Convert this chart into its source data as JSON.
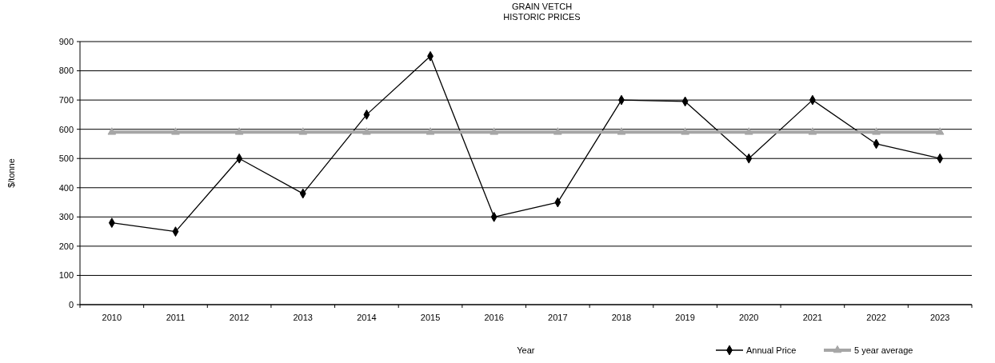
{
  "chart_data": {
    "type": "line",
    "title": "GRAIN VETCH",
    "subtitle": "HISTORIC PRICES",
    "xlabel": "Year",
    "ylabel": "$/tonne",
    "categories": [
      "2010",
      "2011",
      "2012",
      "2013",
      "2014",
      "2015",
      "2016",
      "2017",
      "2018",
      "2019",
      "2020",
      "2021",
      "2022",
      "2023"
    ],
    "series": [
      {
        "name": "Annual Price",
        "color": "#000000",
        "marker": "diamond",
        "values": [
          280,
          250,
          500,
          380,
          650,
          850,
          300,
          350,
          700,
          695,
          500,
          700,
          550,
          500
        ]
      },
      {
        "name": "5 year average",
        "color": "#a6a6a6",
        "marker": "triangle",
        "values": [
          590,
          590,
          590,
          590,
          590,
          590,
          590,
          590,
          590,
          590,
          590,
          590,
          590,
          590
        ]
      }
    ],
    "ylim": [
      0,
      900
    ],
    "yticks": [
      0,
      100,
      200,
      300,
      400,
      500,
      600,
      700,
      800,
      900
    ],
    "grid": "y",
    "legend": "bottom right"
  }
}
